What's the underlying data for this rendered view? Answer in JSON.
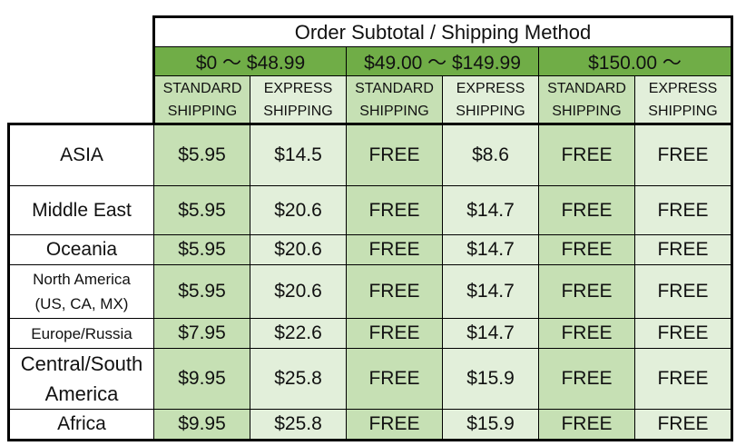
{
  "header": {
    "title": "Order Subtotal / Shipping Method",
    "ranges": [
      "$0 〜 $48.99",
      "$49.00 〜 $149.99",
      "$150.00 〜"
    ],
    "methods": [
      [
        "STANDARD",
        "SHIPPING"
      ],
      [
        "EXPRESS",
        "SHIPPING"
      ],
      [
        "STANDARD",
        "SHIPPING"
      ],
      [
        "EXPRESS",
        "SHIPPING"
      ],
      [
        "STANDARD",
        "SHIPPING"
      ],
      [
        "EXPRESS",
        "SHIPPING"
      ]
    ]
  },
  "colors": {
    "range_header": "#70AD47",
    "standard": "#C6E0B4",
    "express": "#E2EFDA"
  },
  "rows": [
    {
      "region": "ASIA",
      "values": [
        "$5.95",
        "$14.5",
        "FREE",
        "$8.6",
        "FREE",
        "FREE"
      ]
    },
    {
      "region": "Middle East",
      "values": [
        "$5.95",
        "$20.6",
        "FREE",
        "$14.7",
        "FREE",
        "FREE"
      ]
    },
    {
      "region": "Oceania",
      "values": [
        "$5.95",
        "$20.6",
        "FREE",
        "$14.7",
        "FREE",
        "FREE"
      ]
    },
    {
      "region": "North America",
      "region_line2": "(US, CA, MX)",
      "values": [
        "$5.95",
        "$20.6",
        "FREE",
        "$14.7",
        "FREE",
        "FREE"
      ]
    },
    {
      "region": "Europe/Russia",
      "values": [
        "$7.95",
        "$22.6",
        "FREE",
        "$14.7",
        "FREE",
        "FREE"
      ]
    },
    {
      "region": "Central/South",
      "region_line2": "America",
      "values": [
        "$9.95",
        "$25.8",
        "FREE",
        "$15.9",
        "FREE",
        "FREE"
      ]
    },
    {
      "region": "Africa",
      "values": [
        "$9.95",
        "$25.8",
        "FREE",
        "$15.9",
        "FREE",
        "FREE"
      ]
    }
  ]
}
